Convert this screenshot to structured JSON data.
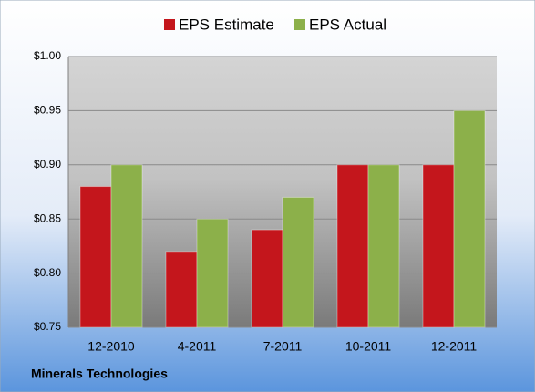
{
  "chart_data": {
    "type": "bar",
    "annotation": "Minerals Technologies",
    "categories": [
      "12-2010",
      "4-2011",
      "7-2011",
      "10-2011",
      "12-2011"
    ],
    "series": [
      {
        "name": "EPS Estimate",
        "color": "#c4161c",
        "values": [
          0.88,
          0.82,
          0.84,
          0.9,
          0.9
        ]
      },
      {
        "name": "EPS Actual",
        "color": "#8cb04a",
        "values": [
          0.9,
          0.85,
          0.87,
          0.9,
          0.95
        ]
      }
    ],
    "ylim": [
      0.75,
      1.0
    ],
    "yticks": [
      {
        "value": 0.75,
        "label": "$0.75"
      },
      {
        "value": 0.8,
        "label": "$0.80"
      },
      {
        "value": 0.85,
        "label": "$0.85"
      },
      {
        "value": 0.9,
        "label": "$0.90"
      },
      {
        "value": 0.95,
        "label": "$0.95"
      },
      {
        "value": 1.0,
        "label": "$1.00"
      }
    ],
    "grid": true,
    "legend": "top"
  }
}
